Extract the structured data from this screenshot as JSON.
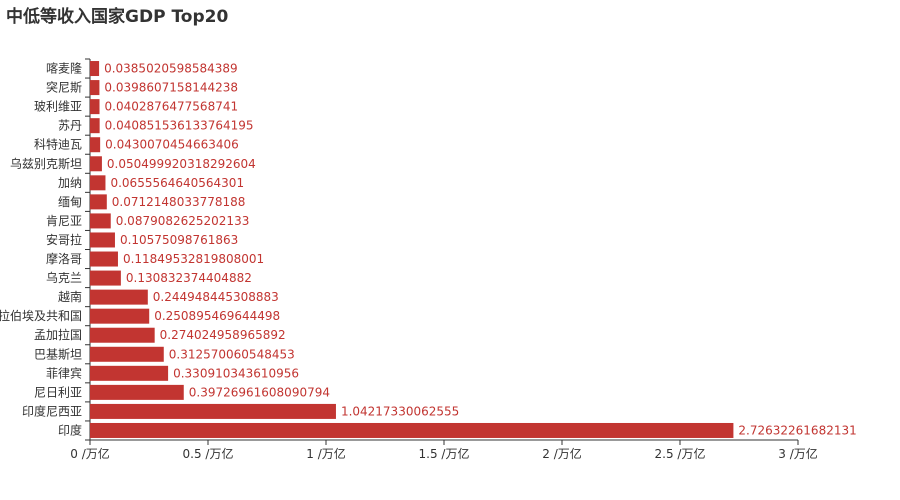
{
  "chart_data": {
    "type": "bar",
    "orientation": "horizontal",
    "title": "中低等收入国家GDP Top20",
    "xlabel": "",
    "ylabel": "",
    "xlim": [
      0,
      3
    ],
    "x_ticks": [
      "0 /万亿",
      "0.5 /万亿",
      "1 /万亿",
      "1.5 /万亿",
      "2 /万亿",
      "2.5 /万亿",
      "3 /万亿"
    ],
    "grid": false,
    "bar_color": "#c23531",
    "categories": [
      "喀麦隆",
      "突尼斯",
      "玻利维亚",
      "苏丹",
      "科特迪瓦",
      "乌兹别克斯坦",
      "加纳",
      "缅甸",
      "肯尼亚",
      "安哥拉",
      "摩洛哥",
      "乌克兰",
      "越南",
      "阿拉伯埃及共和国",
      "孟加拉国",
      "巴基斯坦",
      "菲律宾",
      "尼日利亚",
      "印度尼西亚",
      "印度"
    ],
    "values": [
      0.0385020598584389,
      0.0398607158144238,
      0.0402876477568741,
      0.040851536133764195,
      0.0430070454663406,
      0.050499920318292604,
      0.0655564640564301,
      0.0712148033778188,
      0.0879082625202133,
      0.10575098761863,
      0.11849532819808001,
      0.130832374404882,
      0.244948445308883,
      0.250895469644498,
      0.274024958965892,
      0.312570060548453,
      0.330910343610956,
      0.39726961608090794,
      1.04217330062555,
      2.72632261682131
    ]
  }
}
